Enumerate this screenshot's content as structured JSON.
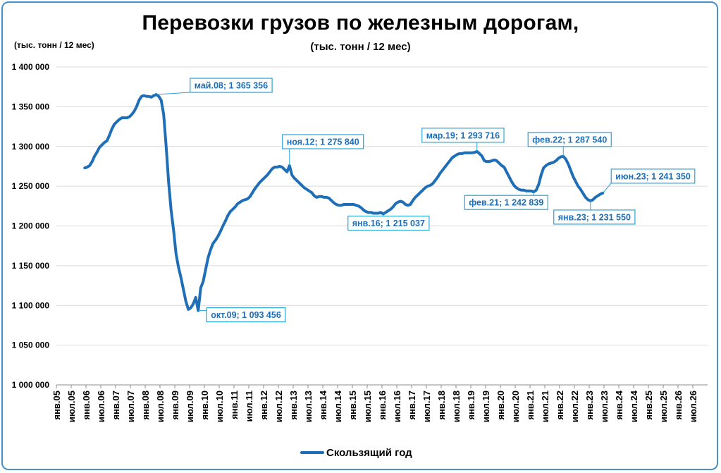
{
  "chart_data": {
    "type": "line",
    "title": "Перевозки грузов по железным дорогам,",
    "subtitle": "(тыс. тонн / 12 мес)",
    "ylabel": "(тыс. тонн / 12 мес)",
    "ylim": [
      1000000,
      1400000
    ],
    "y_ticks": [
      "1 000 000",
      "1 050 000",
      "1 100 000",
      "1 150 000",
      "1 200 000",
      "1 250 000",
      "1 300 000",
      "1 350 000",
      "1 400 000"
    ],
    "x_ticks": [
      "янв.05",
      "июл.05",
      "янв.06",
      "июл.06",
      "янв.07",
      "июл.07",
      "янв.08",
      "июл.08",
      "янв.09",
      "июл.09",
      "янв.10",
      "июл.10",
      "янв.11",
      "июл.11",
      "янв.12",
      "июл.12",
      "янв.13",
      "июл.13",
      "янв.14",
      "июл.14",
      "янв.15",
      "июл.15",
      "янв.16",
      "июл.16",
      "янв.17",
      "июл.17",
      "янв.18",
      "июл.18",
      "янв.19",
      "июл.19",
      "янв.20",
      "июл.20",
      "янв.21",
      "июл.21",
      "янв.22",
      "июл.22",
      "янв.23",
      "июл.23",
      "янв.24",
      "июл.24",
      "янв.25",
      "июл.25",
      "янв.26",
      "июл.26"
    ],
    "grid": true,
    "legend_position": "bottom",
    "series": [
      {
        "name": "Скользящий год",
        "color": "#1e6fb8",
        "points": [
          [
            "2005-12",
            1273000
          ],
          [
            "2006-01",
            1274000
          ],
          [
            "2006-02",
            1276000
          ],
          [
            "2006-03",
            1281000
          ],
          [
            "2006-04",
            1288000
          ],
          [
            "2006-05",
            1293000
          ],
          [
            "2006-06",
            1299000
          ],
          [
            "2006-07",
            1302000
          ],
          [
            "2006-08",
            1305000
          ],
          [
            "2006-09",
            1307000
          ],
          [
            "2006-10",
            1314000
          ],
          [
            "2006-11",
            1322000
          ],
          [
            "2006-12",
            1328000
          ],
          [
            "2007-01",
            1331000
          ],
          [
            "2007-02",
            1334000
          ],
          [
            "2007-03",
            1336000
          ],
          [
            "2007-04",
            1336000
          ],
          [
            "2007-05",
            1336000
          ],
          [
            "2007-06",
            1337000
          ],
          [
            "2007-07",
            1340000
          ],
          [
            "2007-08",
            1344000
          ],
          [
            "2007-09",
            1350000
          ],
          [
            "2007-10",
            1358000
          ],
          [
            "2007-11",
            1363000
          ],
          [
            "2007-12",
            1364000
          ],
          [
            "2008-01",
            1363000
          ],
          [
            "2008-02",
            1363000
          ],
          [
            "2008-03",
            1362000
          ],
          [
            "2008-04",
            1364000
          ],
          [
            "2008-05",
            1365356
          ],
          [
            "2008-06",
            1363000
          ],
          [
            "2008-07",
            1358000
          ],
          [
            "2008-08",
            1340000
          ],
          [
            "2008-09",
            1300000
          ],
          [
            "2008-10",
            1255000
          ],
          [
            "2008-11",
            1220000
          ],
          [
            "2008-12",
            1195000
          ],
          [
            "2009-01",
            1165000
          ],
          [
            "2009-02",
            1148000
          ],
          [
            "2009-03",
            1135000
          ],
          [
            "2009-04",
            1120000
          ],
          [
            "2009-05",
            1105000
          ],
          [
            "2009-06",
            1095000
          ],
          [
            "2009-07",
            1097000
          ],
          [
            "2009-08",
            1102000
          ],
          [
            "2009-09",
            1110000
          ],
          [
            "2009-10",
            1093456
          ],
          [
            "2009-11",
            1122000
          ],
          [
            "2009-12",
            1130000
          ],
          [
            "2010-01",
            1145000
          ],
          [
            "2010-02",
            1160000
          ],
          [
            "2010-03",
            1170000
          ],
          [
            "2010-04",
            1178000
          ],
          [
            "2010-05",
            1182000
          ],
          [
            "2010-06",
            1187000
          ],
          [
            "2010-07",
            1193000
          ],
          [
            "2010-08",
            1200000
          ],
          [
            "2010-09",
            1206000
          ],
          [
            "2010-10",
            1213000
          ],
          [
            "2010-11",
            1218000
          ],
          [
            "2010-12",
            1221000
          ],
          [
            "2011-01",
            1224000
          ],
          [
            "2011-02",
            1228000
          ],
          [
            "2011-03",
            1230000
          ],
          [
            "2011-04",
            1232000
          ],
          [
            "2011-05",
            1233000
          ],
          [
            "2011-06",
            1234000
          ],
          [
            "2011-07",
            1237000
          ],
          [
            "2011-08",
            1242000
          ],
          [
            "2011-09",
            1247000
          ],
          [
            "2011-10",
            1251000
          ],
          [
            "2011-11",
            1255000
          ],
          [
            "2011-12",
            1258000
          ],
          [
            "2012-01",
            1261000
          ],
          [
            "2012-02",
            1264000
          ],
          [
            "2012-03",
            1268000
          ],
          [
            "2012-04",
            1272000
          ],
          [
            "2012-05",
            1274000
          ],
          [
            "2012-06",
            1274000
          ],
          [
            "2012-07",
            1275000
          ],
          [
            "2012-08",
            1274000
          ],
          [
            "2012-09",
            1271000
          ],
          [
            "2012-10",
            1268000
          ],
          [
            "2012-11",
            1275840
          ],
          [
            "2012-12",
            1264000
          ],
          [
            "2013-01",
            1260000
          ],
          [
            "2013-02",
            1257000
          ],
          [
            "2013-03",
            1254000
          ],
          [
            "2013-04",
            1251000
          ],
          [
            "2013-05",
            1248000
          ],
          [
            "2013-06",
            1246000
          ],
          [
            "2013-07",
            1244000
          ],
          [
            "2013-08",
            1242000
          ],
          [
            "2013-09",
            1238000
          ],
          [
            "2013-10",
            1236000
          ],
          [
            "2013-11",
            1237000
          ],
          [
            "2013-12",
            1237000
          ],
          [
            "2014-01",
            1236000
          ],
          [
            "2014-02",
            1236000
          ],
          [
            "2014-03",
            1235000
          ],
          [
            "2014-04",
            1232000
          ],
          [
            "2014-05",
            1229000
          ],
          [
            "2014-06",
            1227000
          ],
          [
            "2014-07",
            1226000
          ],
          [
            "2014-08",
            1226000
          ],
          [
            "2014-09",
            1227000
          ],
          [
            "2014-10",
            1227000
          ],
          [
            "2014-11",
            1227000
          ],
          [
            "2014-12",
            1227000
          ],
          [
            "2015-01",
            1227000
          ],
          [
            "2015-02",
            1226000
          ],
          [
            "2015-03",
            1225000
          ],
          [
            "2015-04",
            1223000
          ],
          [
            "2015-05",
            1220000
          ],
          [
            "2015-06",
            1218000
          ],
          [
            "2015-07",
            1217000
          ],
          [
            "2015-08",
            1217000
          ],
          [
            "2015-09",
            1216000
          ],
          [
            "2015-10",
            1216000
          ],
          [
            "2015-11",
            1216000
          ],
          [
            "2015-12",
            1217000
          ],
          [
            "2016-01",
            1215037
          ],
          [
            "2016-02",
            1217000
          ],
          [
            "2016-03",
            1219000
          ],
          [
            "2016-04",
            1221000
          ],
          [
            "2016-05",
            1224000
          ],
          [
            "2016-06",
            1228000
          ],
          [
            "2016-07",
            1230000
          ],
          [
            "2016-08",
            1231000
          ],
          [
            "2016-09",
            1230000
          ],
          [
            "2016-10",
            1227000
          ],
          [
            "2016-11",
            1226000
          ],
          [
            "2016-12",
            1227000
          ],
          [
            "2017-01",
            1232000
          ],
          [
            "2017-02",
            1236000
          ],
          [
            "2017-03",
            1239000
          ],
          [
            "2017-04",
            1242000
          ],
          [
            "2017-05",
            1245000
          ],
          [
            "2017-06",
            1248000
          ],
          [
            "2017-07",
            1250000
          ],
          [
            "2017-08",
            1251000
          ],
          [
            "2017-09",
            1253000
          ],
          [
            "2017-10",
            1257000
          ],
          [
            "2017-11",
            1261000
          ],
          [
            "2017-12",
            1266000
          ],
          [
            "2018-01",
            1270000
          ],
          [
            "2018-02",
            1274000
          ],
          [
            "2018-03",
            1278000
          ],
          [
            "2018-04",
            1282000
          ],
          [
            "2018-05",
            1286000
          ],
          [
            "2018-06",
            1288000
          ],
          [
            "2018-07",
            1290000
          ],
          [
            "2018-08",
            1291000
          ],
          [
            "2018-09",
            1291000
          ],
          [
            "2018-10",
            1292000
          ],
          [
            "2018-11",
            1292000
          ],
          [
            "2018-12",
            1292000
          ],
          [
            "2019-01",
            1292000
          ],
          [
            "2019-02",
            1292500
          ],
          [
            "2019-03",
            1293716
          ],
          [
            "2019-04",
            1291000
          ],
          [
            "2019-05",
            1288000
          ],
          [
            "2019-06",
            1282000
          ],
          [
            "2019-07",
            1281000
          ],
          [
            "2019-08",
            1281000
          ],
          [
            "2019-09",
            1282000
          ],
          [
            "2019-10",
            1283000
          ],
          [
            "2019-11",
            1282000
          ],
          [
            "2019-12",
            1279000
          ],
          [
            "2020-01",
            1276000
          ],
          [
            "2020-02",
            1274000
          ],
          [
            "2020-03",
            1268000
          ],
          [
            "2020-04",
            1262000
          ],
          [
            "2020-05",
            1256000
          ],
          [
            "2020-06",
            1251000
          ],
          [
            "2020-07",
            1248000
          ],
          [
            "2020-08",
            1246000
          ],
          [
            "2020-09",
            1245000
          ],
          [
            "2020-10",
            1245000
          ],
          [
            "2020-11",
            1244000
          ],
          [
            "2020-12",
            1244000
          ],
          [
            "2021-01",
            1244000
          ],
          [
            "2021-02",
            1242839
          ],
          [
            "2021-03",
            1245000
          ],
          [
            "2021-04",
            1252000
          ],
          [
            "2021-05",
            1264000
          ],
          [
            "2021-06",
            1273000
          ],
          [
            "2021-07",
            1276000
          ],
          [
            "2021-08",
            1278000
          ],
          [
            "2021-09",
            1279000
          ],
          [
            "2021-10",
            1280000
          ],
          [
            "2021-11",
            1282000
          ],
          [
            "2021-12",
            1285000
          ],
          [
            "2022-01",
            1287000
          ],
          [
            "2022-02",
            1287540
          ],
          [
            "2022-03",
            1284000
          ],
          [
            "2022-04",
            1278000
          ],
          [
            "2022-05",
            1270000
          ],
          [
            "2022-06",
            1262000
          ],
          [
            "2022-07",
            1256000
          ],
          [
            "2022-08",
            1250000
          ],
          [
            "2022-09",
            1246000
          ],
          [
            "2022-10",
            1241000
          ],
          [
            "2022-11",
            1236000
          ],
          [
            "2022-12",
            1233000
          ],
          [
            "2023-01",
            1231550
          ],
          [
            "2023-02",
            1233000
          ],
          [
            "2023-03",
            1236000
          ],
          [
            "2023-04",
            1238000
          ],
          [
            "2023-05",
            1240000
          ],
          [
            "2023-06",
            1241350
          ]
        ]
      }
    ],
    "annotations": [
      {
        "date": "2008-05",
        "text": "май.08; 1 365 356"
      },
      {
        "date": "2009-10",
        "text": "окт.09; 1 093 456"
      },
      {
        "date": "2012-11",
        "text": "ноя.12; 1 275 840"
      },
      {
        "date": "2016-01",
        "text": "янв.16; 1 215 037"
      },
      {
        "date": "2019-03",
        "text": "мар.19; 1 293 716"
      },
      {
        "date": "2021-02",
        "text": "фев.21; 1 242 839"
      },
      {
        "date": "2022-02",
        "text": "фев.22; 1 287 540"
      },
      {
        "date": "2023-01",
        "text": "янв.23; 1 231 550"
      },
      {
        "date": "2023-06",
        "text": "июн.23; 1 241 350"
      }
    ]
  }
}
